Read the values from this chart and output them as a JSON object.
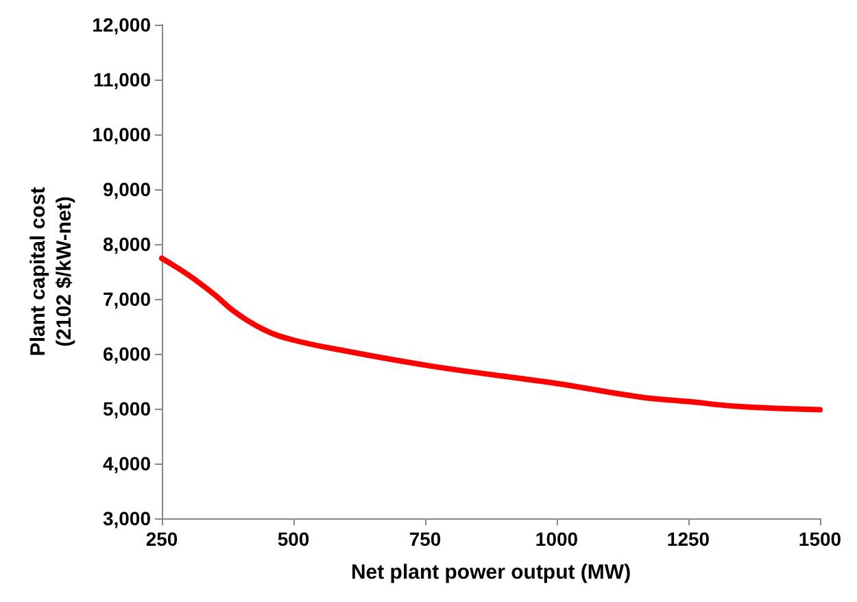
{
  "chart_data": {
    "type": "line",
    "xlabel": "Net plant power output (MW)",
    "ylabel": "Plant capital cost\n(2102 $/kW-net)",
    "x": [
      250,
      300,
      350,
      388,
      444,
      500,
      600,
      759,
      900,
      1000,
      1160,
      1250,
      1345,
      1500
    ],
    "series": [
      {
        "color": "#ff0000",
        "values": [
          7740,
          7440,
          7080,
          6770,
          6440,
          6250,
          6050,
          5780,
          5590,
          5460,
          5210,
          5130,
          5040,
          4980
        ]
      }
    ],
    "xlim": [
      250,
      1500
    ],
    "xticks": [
      250,
      500,
      750,
      1000,
      1250,
      1500
    ],
    "ylim": [
      3000,
      12000
    ],
    "yticks": [
      {
        "value": 3000,
        "label": "3,000"
      },
      {
        "value": 4000,
        "label": "4,000"
      },
      {
        "value": 5000,
        "label": "5,000"
      },
      {
        "value": 6000,
        "label": "6,000"
      },
      {
        "value": 7000,
        "label": "7,000"
      },
      {
        "value": 8000,
        "label": "8,000"
      },
      {
        "value": 9000,
        "label": "9,000"
      },
      {
        "value": 10000,
        "label": "10,000"
      },
      {
        "value": 11000,
        "label": "11,000"
      },
      {
        "value": 12000,
        "label": "12,000"
      }
    ],
    "grid": false,
    "marker": "none",
    "line_style": "solid"
  }
}
